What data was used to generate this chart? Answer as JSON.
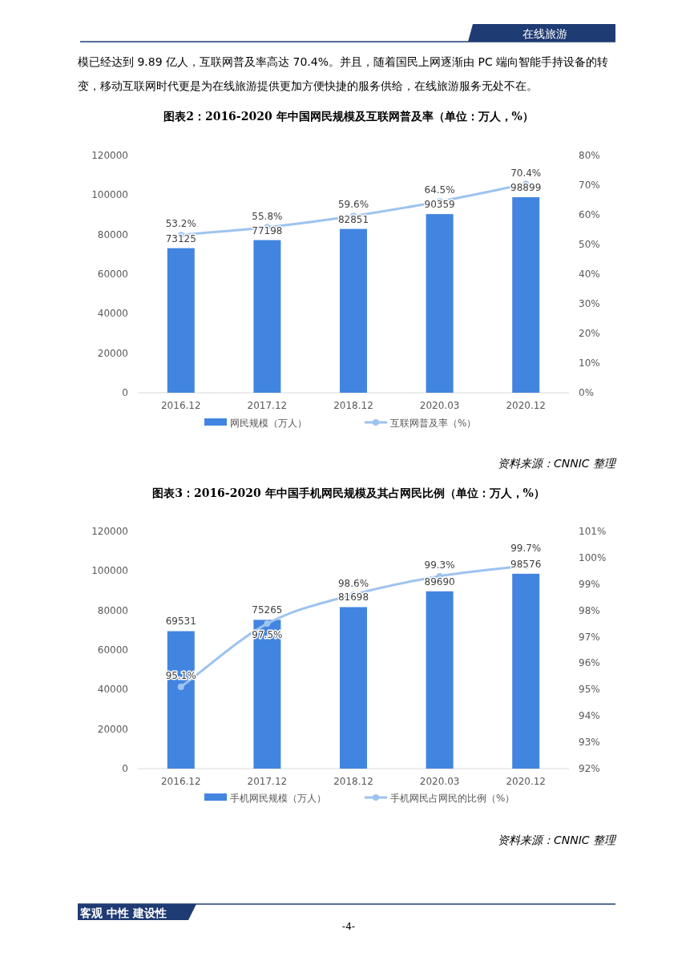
{
  "chart_data": [
    {
      "type": "bar",
      "title": "图表2：2016-2020 年中国网民规模及互联网普及率（单位：万人，%）",
      "categories": [
        "2016.12",
        "2017.12",
        "2018.12",
        "2020.03",
        "2020.12"
      ],
      "series": [
        {
          "name": "网民规模（万人）",
          "color": "#4285e0",
          "values": [
            73125,
            77198,
            82851,
            90359,
            98899
          ],
          "value_labels": [
            "73125",
            "77198",
            "82851",
            "90359",
            "98899"
          ]
        },
        {
          "name": "互联网普及率（%）",
          "type": "line",
          "axis": "y2",
          "color": "#9dc3f0",
          "values": [
            53.2,
            55.8,
            59.6,
            64.5,
            70.4
          ],
          "value_labels": [
            "53.2%",
            "55.8%",
            "59.6%",
            "64.5%",
            "70.4%"
          ]
        }
      ],
      "ylim": [
        0,
        120000
      ],
      "yticks": [
        0,
        20000,
        40000,
        60000,
        80000,
        100000,
        120000
      ],
      "y2lim": [
        0,
        80
      ],
      "y2ticks": [
        {
          "value": 0,
          "label": "0%"
        },
        {
          "value": 10,
          "label": "10%"
        },
        {
          "value": 20,
          "label": "20%"
        },
        {
          "value": 30,
          "label": "30%"
        },
        {
          "value": 40,
          "label": "40%"
        },
        {
          "value": 50,
          "label": "50%"
        },
        {
          "value": 60,
          "label": "60%"
        },
        {
          "value": 70,
          "label": "70%"
        },
        {
          "value": 80,
          "label": "80%"
        }
      ],
      "marker": "circle",
      "legend": "bottom",
      "annotations": [
        "在线旅游",
        "模已经达到 9.89 亿人，互联网普及率高达 70.4%。并且，随着国民上网逐渐由 PC 端向智能手持设备的转",
        "变，移动互联网时代更是为在线旅游提供更加方便快捷的服务供给，在线旅游服务无处不在。",
        "资料来源：CNNIC 整理"
      ]
    },
    {
      "type": "bar",
      "title": "图表3：2016-2020 年中国手机网民规模及其占网民比例（单位：万人，%）",
      "categories": [
        "2016.12",
        "2017.12",
        "2018.12",
        "2020.03",
        "2020.12"
      ],
      "series": [
        {
          "name": "手机网民规模（万人）",
          "color": "#4285e0",
          "values": [
            69531,
            75265,
            81698,
            89690,
            98576
          ],
          "value_labels": [
            "69531",
            "75265",
            "81698",
            "89690",
            "98576"
          ]
        },
        {
          "name": "手机网民占网民的比例（%）",
          "type": "line",
          "axis": "y2",
          "color": "#9dc3f0",
          "values": [
            95.1,
            97.5,
            98.6,
            99.3,
            99.7
          ],
          "value_labels": [
            "95.1%",
            "97.5%",
            "98.6%",
            "99.3%",
            "99.7%"
          ]
        }
      ],
      "ylim": [
        0,
        120000
      ],
      "yticks": [
        0,
        20000,
        40000,
        60000,
        80000,
        100000,
        120000
      ],
      "y2lim": [
        92,
        101
      ],
      "y2ticks": [
        {
          "value": 92,
          "label": "92%"
        },
        {
          "value": 93,
          "label": "93%"
        },
        {
          "value": 94,
          "label": "94%"
        },
        {
          "value": 95,
          "label": "95%"
        },
        {
          "value": 96,
          "label": "96%"
        },
        {
          "value": 97,
          "label": "97%"
        },
        {
          "value": 98,
          "label": "98%"
        },
        {
          "value": 99,
          "label": "99%"
        },
        {
          "value": 100,
          "label": "100%"
        },
        {
          "value": 101,
          "label": "101%"
        }
      ],
      "marker": "circle",
      "legend": "bottom",
      "annotations": [
        "资料来源：CNNIC 整理",
        "客观 中性 建设性",
        "-4-"
      ]
    }
  ]
}
